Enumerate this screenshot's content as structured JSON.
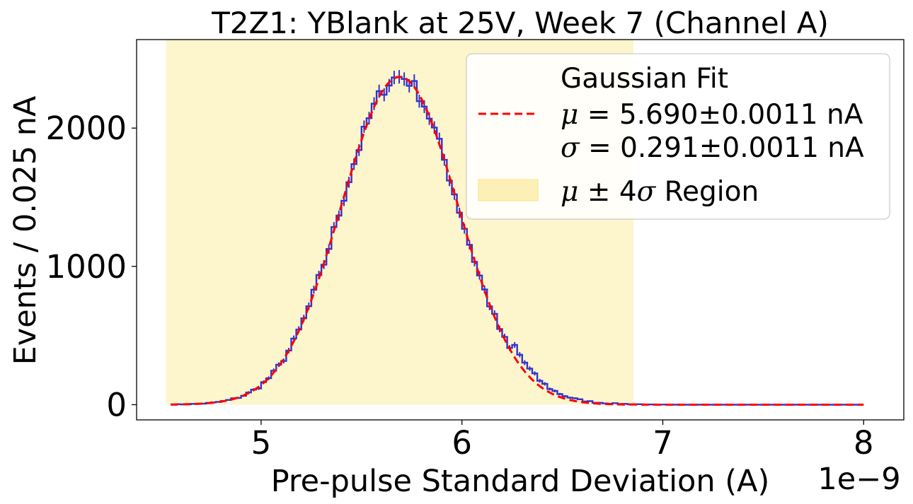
{
  "chart_data": {
    "type": "histogram",
    "title": "T2Z1: YBlank at 25V, Week 7 (Channel A)",
    "xlabel": "Pre-pulse Standard Deviation (A)",
    "ylabel": "Events / 0.025 nA",
    "x_offset_label": "1e−9",
    "x_scale": 1e-09,
    "xlim": [
      4.38,
      8.2
    ],
    "ylim": [
      -110,
      2640
    ],
    "xticks": [
      5,
      6,
      7,
      8
    ],
    "xtick_labels": [
      "5",
      "6",
      "7",
      "8"
    ],
    "yticks": [
      0,
      1000,
      2000
    ],
    "ytick_labels": [
      "0",
      "1000",
      "2000"
    ],
    "grid": false,
    "legend_position": "upper right",
    "bin_width": 0.025,
    "x_range": [
      4.55,
      8.0
    ],
    "histogram": {
      "color": "#3333cc",
      "bins_note": "step histogram of pre-pulse standard deviation",
      "approx_counts": {
        "x": [
          4.6,
          4.8,
          5.0,
          5.1,
          5.2,
          5.3,
          5.4,
          5.5,
          5.6,
          5.69,
          5.8,
          5.9,
          6.0,
          6.1,
          6.2,
          6.3,
          6.4,
          6.5,
          6.6,
          6.8,
          7.0,
          8.0
        ],
        "y": [
          0,
          20,
          120,
          250,
          480,
          830,
          1300,
          1800,
          2200,
          2370,
          2300,
          1900,
          1400,
          990,
          560,
          380,
          180,
          90,
          30,
          5,
          0,
          0
        ]
      }
    },
    "fit": {
      "label": "Gaussian Fit",
      "mu_label": "μ = 5.690±0.0011 nA",
      "sigma_label": "σ = 0.291±0.0011 nA",
      "mu": 5.69,
      "sigma": 0.291,
      "amplitude": 2370,
      "color": "#ff0000",
      "style": "dashed"
    },
    "region": {
      "label": "μ ± 4σ Region",
      "x_range": [
        4.526,
        6.854
      ],
      "color": "#fdf5cc"
    }
  },
  "legend": {
    "fit_title": "Gaussian Fit",
    "mu_prefix": "μ",
    "mu_value": " = 5.690±0.0011 nA",
    "sigma_prefix": "σ",
    "sigma_value": " = 0.291±0.0011 nA",
    "region_mu": "μ",
    "region_pm": " ± 4",
    "region_sigma": "σ",
    "region_suffix": " Region"
  }
}
